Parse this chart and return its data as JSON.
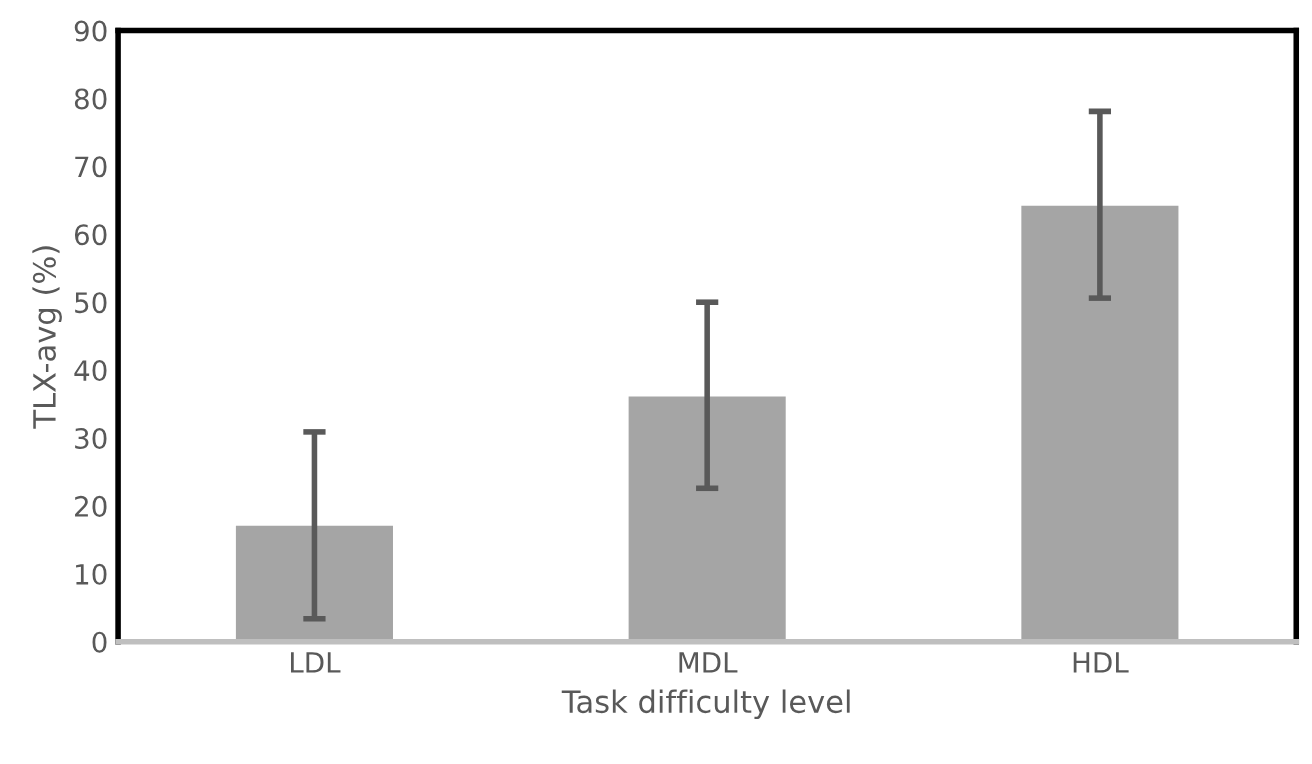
{
  "chart_data": {
    "type": "bar",
    "xlabel": "Task difficulty level",
    "ylabel": "TLX-avg (%)",
    "categories": [
      "LDL",
      "MDL",
      "HDL"
    ],
    "values": [
      17.1,
      36.1,
      64.2
    ],
    "errors": [
      [
        3.4,
        30.9
      ],
      [
        22.6,
        50.0
      ],
      [
        50.6,
        78.1
      ]
    ],
    "color": "#a5a5a5",
    "ylim": [
      0,
      90
    ],
    "yticks": [
      0,
      10,
      20,
      30,
      40,
      50,
      60,
      70,
      80,
      90
    ],
    "grid": false,
    "legend": false
  }
}
